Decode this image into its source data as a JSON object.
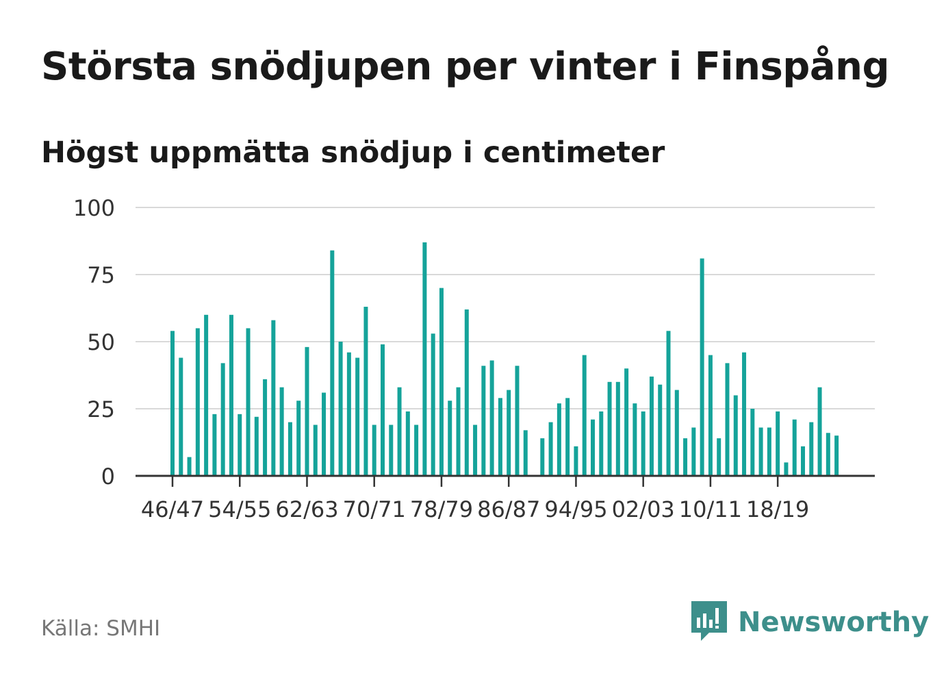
{
  "header": {
    "title": "Största snödjupen per vinter i Finspång",
    "subtitle": "Högst uppmätta snödjup i centimeter"
  },
  "footer": {
    "source": "Källa: SMHI",
    "brand_name": "Newsworthy",
    "brand_icon": "newsworthy-logo-icon",
    "brand_color": "#3d8f8b"
  },
  "chart_data": {
    "type": "bar",
    "bar_color": "#15a39a",
    "grid": true,
    "ylim": [
      0,
      100
    ],
    "yticks": [
      0,
      25,
      50,
      75,
      100
    ],
    "x_tick_labels": [
      "46/47",
      "54/55",
      "62/63",
      "70/71",
      "78/79",
      "86/87",
      "94/95",
      "02/03",
      "10/11",
      "18/19"
    ],
    "first_winter": "46/47",
    "values": [
      54,
      44,
      7,
      55,
      60,
      23,
      42,
      60,
      23,
      55,
      22,
      36,
      58,
      33,
      20,
      28,
      48,
      19,
      31,
      84,
      50,
      46,
      44,
      63,
      19,
      49,
      19,
      33,
      24,
      19,
      87,
      53,
      70,
      28,
      33,
      62,
      19,
      41,
      43,
      29,
      32,
      41,
      17,
      null,
      14,
      20,
      27,
      29,
      11,
      45,
      21,
      24,
      35,
      35,
      40,
      27,
      24,
      37,
      34,
      54,
      32,
      14,
      18,
      81,
      45,
      14,
      42,
      30,
      46,
      25,
      18,
      18,
      24,
      5,
      21,
      11,
      20,
      33,
      16,
      15
    ]
  }
}
